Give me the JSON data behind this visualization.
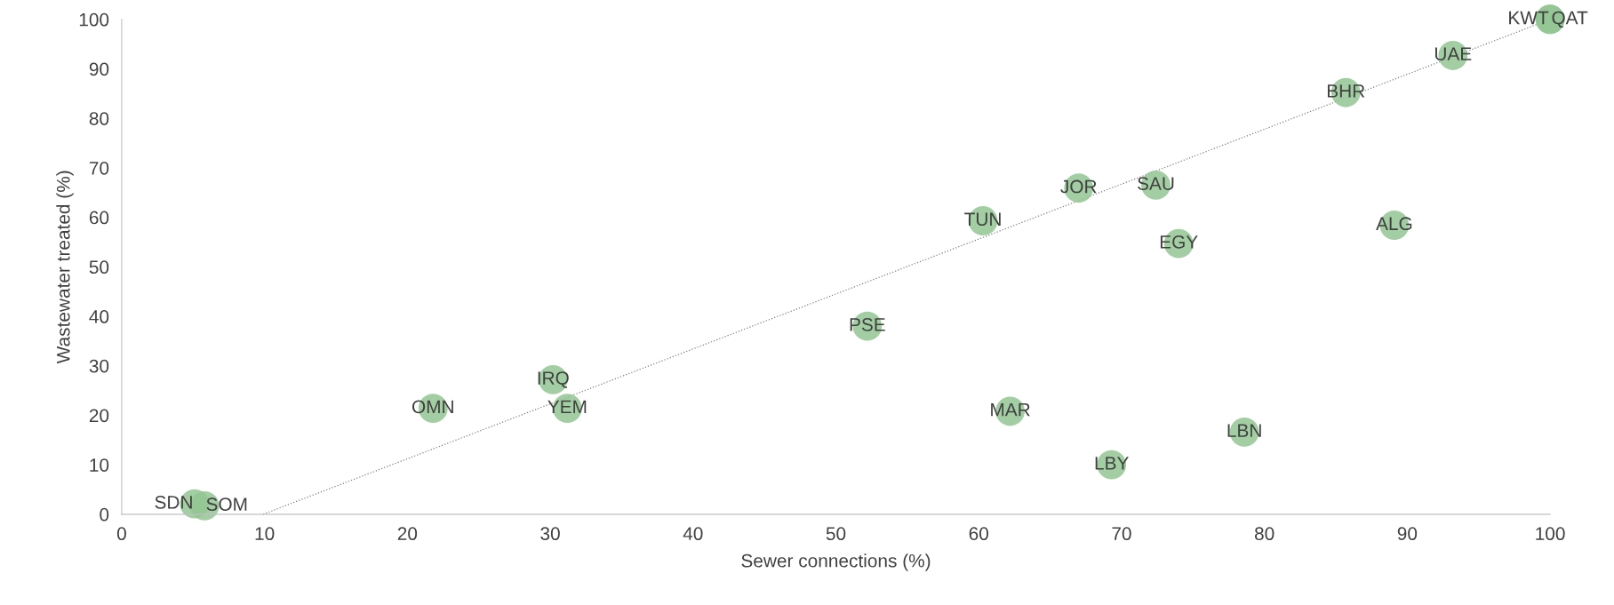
{
  "chart_data": {
    "type": "scatter",
    "xlabel": "Sewer connections (%)",
    "ylabel": "Wastewater treated (%)",
    "xlim": [
      0,
      100
    ],
    "xticks": [
      0,
      10,
      20,
      30,
      40,
      50,
      60,
      70,
      80,
      90,
      100
    ],
    "ylim": [
      0,
      100
    ],
    "yticks": [
      0,
      10,
      20,
      30,
      40,
      50,
      60,
      70,
      80,
      90,
      100
    ],
    "grid": false,
    "legend": false,
    "marker": "circle",
    "series": [
      {
        "color": "#93c593",
        "x": [
          100,
          100,
          93.2,
          85.7,
          72.4,
          67.0,
          60.3,
          89.1,
          74.0,
          52.2,
          30.2,
          31.2,
          21.8,
          62.2,
          78.6,
          69.3,
          5.1,
          5.8
        ],
        "values": [
          100,
          100,
          92.7,
          85.2,
          66.5,
          65.9,
          59.3,
          58.4,
          54.7,
          38.0,
          27.2,
          21.4,
          21.4,
          20.8,
          16.6,
          10.0,
          2.1,
          1.7
        ]
      },
      {
        "type": "line",
        "color": "#808080",
        "line_style": "dotted",
        "marker": "none",
        "x": [
          9.9,
          100
        ],
        "values": [
          0,
          100
        ]
      }
    ],
    "annotations": [
      {
        "text": "KWT",
        "x": 100,
        "y": 100
      },
      {
        "text": "QAT",
        "x": 100,
        "y": 100
      },
      {
        "text": "UAE",
        "x": 93.2,
        "y": 92.7
      },
      {
        "text": "BHR",
        "x": 85.7,
        "y": 85.2
      },
      {
        "text": "SAU",
        "x": 72.4,
        "y": 66.5
      },
      {
        "text": "JOR",
        "x": 67.0,
        "y": 65.9
      },
      {
        "text": "TUN",
        "x": 60.3,
        "y": 59.3
      },
      {
        "text": "ALG",
        "x": 89.1,
        "y": 58.4
      },
      {
        "text": "EGY",
        "x": 74.0,
        "y": 54.7
      },
      {
        "text": "PSE",
        "x": 52.2,
        "y": 38.0
      },
      {
        "text": "IRQ",
        "x": 30.2,
        "y": 27.2
      },
      {
        "text": "YEM",
        "x": 31.2,
        "y": 21.4
      },
      {
        "text": "OMN",
        "x": 21.8,
        "y": 21.4
      },
      {
        "text": "MAR",
        "x": 62.2,
        "y": 20.8
      },
      {
        "text": "LBN",
        "x": 78.6,
        "y": 16.6
      },
      {
        "text": "LBY",
        "x": 69.3,
        "y": 10.0
      },
      {
        "text": "SDN",
        "x": 5.1,
        "y": 2.1
      },
      {
        "text": "SOM",
        "x": 5.8,
        "y": 1.7
      }
    ]
  }
}
